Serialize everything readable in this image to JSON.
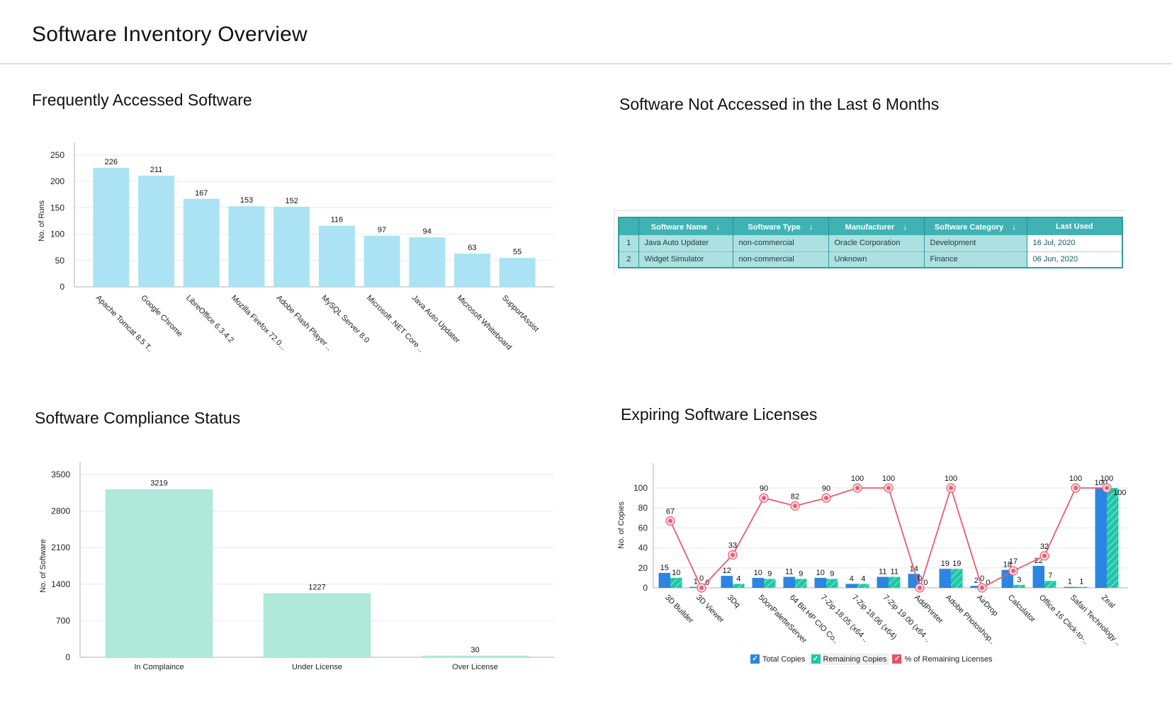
{
  "page": {
    "title": "Software Inventory Overview"
  },
  "sections": {
    "frequent": "Frequently Accessed Software",
    "not_accessed": "Software Not Accessed in the Last 6 Months",
    "compliance": "Software Compliance Status",
    "expiring": "Expiring Software Licenses"
  },
  "table": {
    "columns": [
      {
        "label": "Software Name",
        "sortable": true
      },
      {
        "label": "Software Type",
        "sortable": true
      },
      {
        "label": "Manufacturer",
        "sortable": true
      },
      {
        "label": "Software Category",
        "sortable": true
      },
      {
        "label": "Last Used",
        "sortable": false
      }
    ],
    "sort_icon": "↓",
    "rows": [
      {
        "index": "1",
        "name": "Java Auto Updater",
        "type": "non-commercial",
        "manufacturer": "Oracle Corporation",
        "category": "Development",
        "last_used": "16 Jul, 2020"
      },
      {
        "index": "2",
        "name": "Widget Simulator",
        "type": "non-commercial",
        "manufacturer": "Unknown",
        "category": "Finance",
        "last_used": "06 Jun, 2020"
      }
    ]
  },
  "legend": {
    "items": [
      {
        "label": "Total Copies",
        "color": "#2a86e0",
        "checked": true
      },
      {
        "label": "Remaining Copies",
        "color": "#1fc7a4",
        "checked": true
      },
      {
        "label": "% of Remaining Licenses",
        "color": "#ec4e68",
        "checked": true
      }
    ]
  },
  "colors": {
    "frequent_bar": "#abe3f4",
    "compliance_bar": "#b0e8da",
    "total_bar": "#2a86e0",
    "remaining_bar": "#1fc7a4",
    "pct_line": "#ec5a72",
    "grid": "#efefef",
    "axis": "#cccccc"
  },
  "chart_data": [
    {
      "id": "frequent",
      "type": "bar",
      "title": "Frequently Accessed Software",
      "xlabel": "",
      "ylabel": "No. of Runs",
      "ylim": [
        0,
        250
      ],
      "yticks": [
        0,
        50,
        100,
        150,
        200,
        250
      ],
      "grid": true,
      "categories": [
        "Apache Tomcat 8.5 T..",
        "Google Chrome",
        "LibreOffice 6.3.4.2",
        "Mozilla Firefox 72.0...",
        "Adobe Flash Player ..",
        "MySQL Server 8.0",
        "Microsoft .NET Core ..",
        "Java Auto Updater",
        "Microsoft Whiteboard",
        "SupportAssist"
      ],
      "values": [
        226,
        211,
        167,
        153,
        152,
        116,
        97,
        94,
        63,
        55
      ]
    },
    {
      "id": "compliance",
      "type": "bar",
      "title": "Software Compliance Status",
      "xlabel": "",
      "ylabel": "No. of Software",
      "ylim": [
        0,
        3500
      ],
      "yticks": [
        0,
        700,
        1400,
        2100,
        2800,
        3500
      ],
      "grid": true,
      "categories": [
        "In Complaince",
        "Under License",
        "Over License"
      ],
      "values": [
        3219,
        1227,
        30
      ]
    },
    {
      "id": "expiring",
      "type": "bar",
      "title": "Expiring Software Licenses",
      "xlabel": "",
      "ylabel": "No. of Copies",
      "ylim": [
        0,
        100
      ],
      "yticks": [
        0,
        20,
        40,
        60,
        80,
        100
      ],
      "grid": true,
      "legend": "bottom",
      "categories": [
        "3D Builder",
        "3D Viewer",
        "3Dq",
        "50onPaletteServer",
        "64 Bit HP CIO Co..",
        "7-Zip 18.05 (x64 ..",
        "7-Zip 18.06 (x64)",
        "7-Zip 19.00 (x64 ..",
        "AddPrinter",
        "Adobe Photoshop..",
        "AirDrop",
        "Calculator",
        "Office 16 Click-to-..",
        "Safari Technology ..",
        "Zeal"
      ],
      "series": [
        {
          "name": "Total Copies",
          "type": "bar",
          "values": [
            15,
            1,
            12,
            10,
            11,
            10,
            4,
            11,
            14,
            19,
            2,
            18,
            22,
            1,
            100
          ]
        },
        {
          "name": "Remaining Copies",
          "type": "bar",
          "values": [
            10,
            0,
            4,
            9,
            9,
            9,
            4,
            11,
            0,
            19,
            0,
            3,
            7,
            1,
            100
          ]
        },
        {
          "name": "% of Remaining Licenses",
          "type": "line",
          "values": [
            67,
            0,
            33,
            90,
            82,
            90,
            100,
            100,
            0,
            100,
            0,
            17,
            32,
            100,
            100
          ]
        }
      ]
    }
  ]
}
